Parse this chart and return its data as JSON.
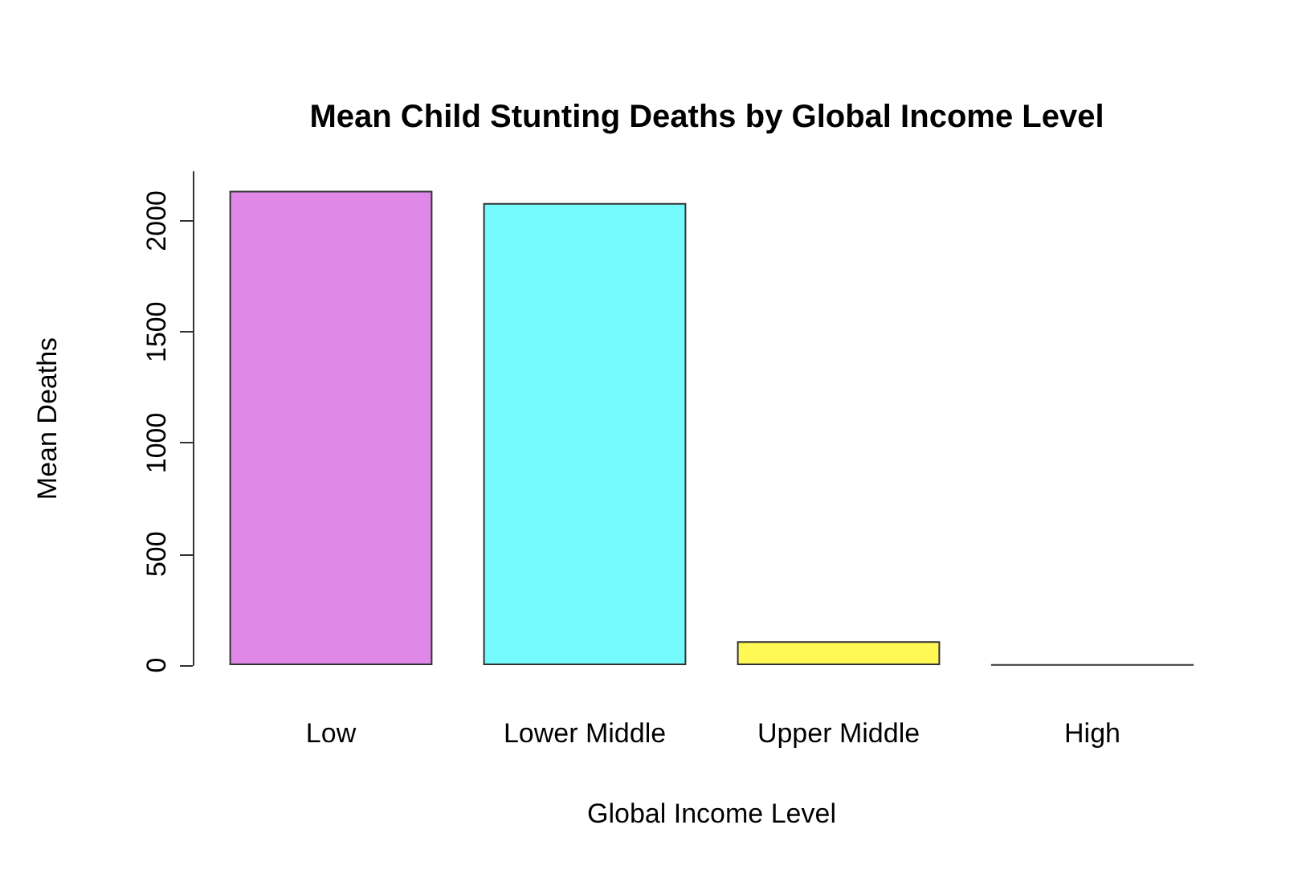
{
  "chart_data": {
    "type": "bar",
    "title": "Mean Child Stunting Deaths by Global Income Level",
    "xlabel": "Global Income Level",
    "ylabel": "Mean Deaths",
    "categories": [
      "Low",
      "Lower Middle",
      "Upper Middle",
      "High"
    ],
    "values": [
      2135,
      2080,
      108,
      2
    ],
    "colors": [
      "#df88e8",
      "#74f9fc",
      "#fff855",
      "#333333"
    ],
    "ylim": [
      0,
      2220
    ],
    "yticks": [
      0,
      500,
      1000,
      1500,
      2000
    ]
  }
}
